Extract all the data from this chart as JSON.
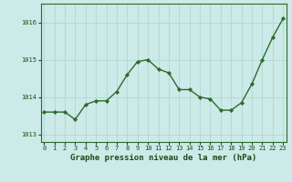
{
  "x": [
    0,
    1,
    2,
    3,
    4,
    5,
    6,
    7,
    8,
    9,
    10,
    11,
    12,
    13,
    14,
    15,
    16,
    17,
    18,
    19,
    20,
    21,
    22,
    23
  ],
  "y": [
    1013.6,
    1013.6,
    1013.6,
    1013.4,
    1013.8,
    1013.9,
    1013.9,
    1014.15,
    1014.6,
    1014.95,
    1015.0,
    1014.75,
    1014.65,
    1014.2,
    1014.2,
    1014.0,
    1013.95,
    1013.65,
    1013.65,
    1013.85,
    1014.35,
    1015.0,
    1015.6,
    1016.1
  ],
  "line_color": "#2d6a2d",
  "marker": "D",
  "marker_size": 2.2,
  "line_width": 1.0,
  "bg_color": "#cceae7",
  "grid_color": "#b0d8d4",
  "xlabel": "Graphe pression niveau de la mer (hPa)",
  "xlabel_color": "#1a4a1a",
  "xlabel_fontsize": 6.5,
  "tick_color": "#1a4a1a",
  "tick_fontsize": 5.0,
  "ylim": [
    1012.8,
    1016.5
  ],
  "yticks": [
    1013,
    1014,
    1015,
    1016
  ],
  "xticks": [
    0,
    1,
    2,
    3,
    4,
    5,
    6,
    7,
    8,
    9,
    10,
    11,
    12,
    13,
    14,
    15,
    16,
    17,
    18,
    19,
    20,
    21,
    22,
    23
  ],
  "spine_color": "#2d6a2d"
}
